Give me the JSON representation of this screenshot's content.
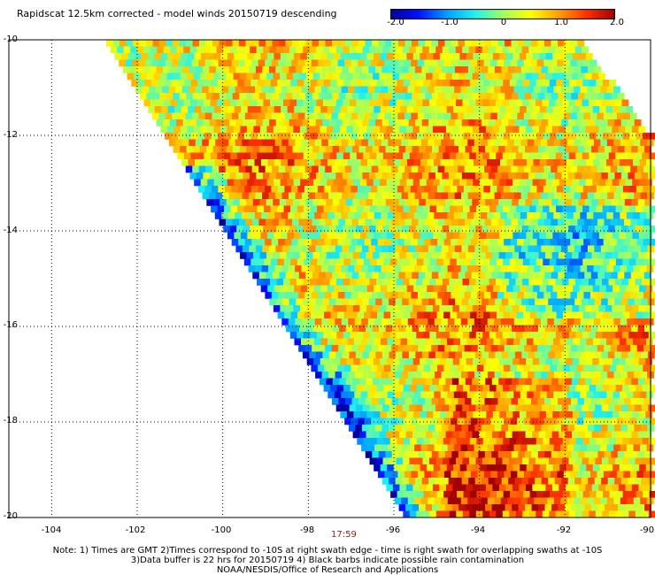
{
  "title": "Rapidscat 12.5km corrected - model winds 20150719 descending",
  "colorbar": {
    "ticks": [
      "-2.0",
      "-1.0",
      "0",
      "1.0",
      "2.0"
    ],
    "tick_values": [
      -2.0,
      -1.0,
      0,
      1.0,
      2.0
    ],
    "range": [
      -2.0,
      2.0
    ],
    "colors": [
      "#0000a0",
      "#0010ff",
      "#00a0ff",
      "#20f0f0",
      "#a0ff60",
      "#ffff00",
      "#ffa000",
      "#ff3000",
      "#a00000"
    ]
  },
  "map": {
    "lon_range": [
      -105,
      -90
    ],
    "lat_range": [
      -20,
      -10
    ],
    "x_ticks": [
      "-104",
      "-102",
      "-100",
      "-98",
      "-96",
      "-94",
      "-92",
      "-90"
    ],
    "x_tick_values": [
      -104,
      -102,
      -100,
      -98,
      -96,
      -94,
      -92,
      -90
    ],
    "y_ticks": [
      "-10",
      "-12",
      "-14",
      "-16",
      "-18",
      "-20"
    ],
    "y_tick_values": [
      -10,
      -12,
      -14,
      -16,
      -18,
      -20
    ],
    "grid": "dotted"
  },
  "time_label": "17:59",
  "notes": {
    "line1": "Note: 1) Times are GMT 2)Times correspond to -10S at right swath edge - time is right swath for overlapping swaths at -10S",
    "line2": "3)Data buffer is 22 hrs for 20150719 4) Black barbs indicate possible rain contamination",
    "line3": "NOAA/NESDIS/Office of Research and Applications"
  }
}
